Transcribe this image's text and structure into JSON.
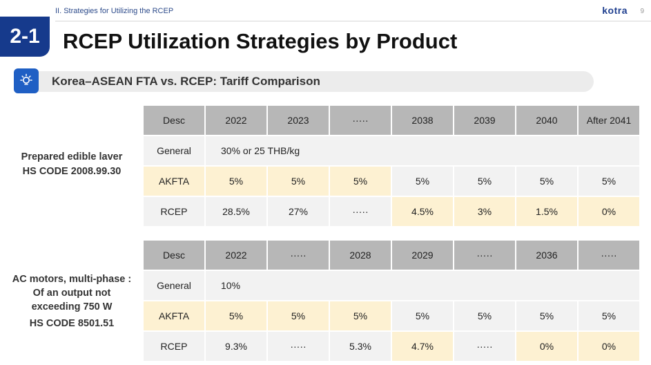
{
  "header": {
    "section": "II. Strategies for Utilizing the RCEP",
    "logo": "kotra",
    "page_number": "9"
  },
  "title": {
    "number": "2-1",
    "text": "RCEP Utilization Strategies by Product"
  },
  "subtitle": {
    "icon": "lightbulb-icon",
    "text": "Korea–ASEAN FTA vs. RCEP: Tariff Comparison"
  },
  "colors": {
    "navy": "#163a8c",
    "icon_blue": "#1f5fc4",
    "header_grey": "#b7b7b7",
    "highlight_yellow": "#fdf1d2",
    "row_grey": "#f2f2f2"
  },
  "products": [
    {
      "name_lines": [
        "Prepared edible laver",
        "HS CODE 2008.99.30"
      ],
      "table": {
        "header": [
          "Desc",
          "2022",
          "2023",
          "·····",
          "2038",
          "2039",
          "2040",
          "After 2041"
        ],
        "general": {
          "label": "General",
          "value": "30% or 25 THB/kg"
        },
        "akfta": {
          "label": "AKFTA",
          "values": [
            "5%",
            "5%",
            "5%",
            "5%",
            "5%",
            "5%",
            "5%"
          ]
        },
        "rcep": {
          "label": "RCEP",
          "values": [
            "28.5%",
            "27%",
            "·····",
            "4.5%",
            "3%",
            "1.5%",
            "0%"
          ]
        }
      }
    },
    {
      "name_lines": [
        "AC motors, multi-phase :",
        "Of an output not",
        "exceeding 750 W",
        "HS CODE 8501.51"
      ],
      "table": {
        "header": [
          "Desc",
          "2022",
          "·····",
          "2028",
          "2029",
          "·····",
          "2036",
          "·····"
        ],
        "general": {
          "label": "General",
          "value": "10%"
        },
        "akfta": {
          "label": "AKFTA",
          "values": [
            "5%",
            "5%",
            "5%",
            "5%",
            "5%",
            "5%",
            "5%"
          ]
        },
        "rcep": {
          "label": "RCEP",
          "values": [
            "9.3%",
            "·····",
            "5.3%",
            "4.7%",
            "·····",
            "0%",
            "0%"
          ]
        }
      }
    }
  ]
}
